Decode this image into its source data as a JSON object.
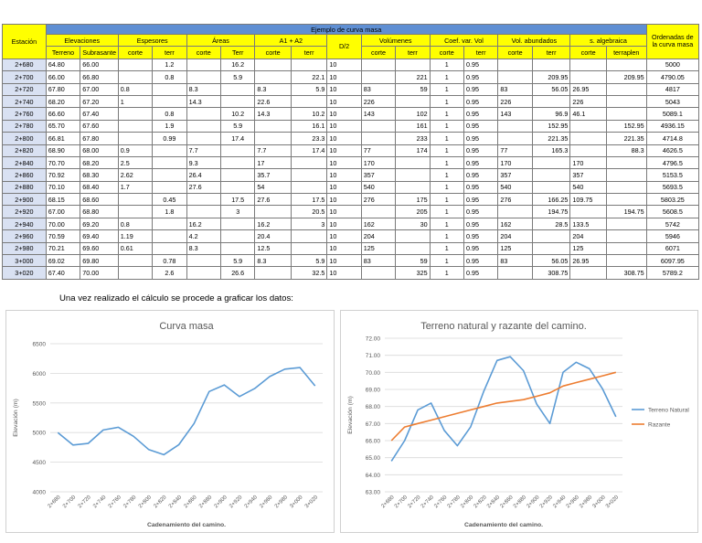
{
  "table": {
    "title": "Ejemplo de curva masa",
    "station_header": "Estación",
    "groups": [
      "Elevaciones",
      "Espesores",
      "Áreas",
      "A1 + A2",
      "D/2",
      "Volúmenes",
      "Coef. var. Vol",
      "Vol. abundados",
      "s. algebraica",
      "Ordenadas de la curva masa"
    ],
    "subheaders": [
      "Terreno",
      "Subrasante",
      "corte",
      "terr",
      "corte",
      "Terr",
      "corte",
      "terr",
      "corte",
      "terr",
      "corte",
      "terr",
      "corte",
      "terr",
      "corte",
      "terraplen"
    ],
    "rows": [
      [
        "2+680",
        "64.80",
        "66.00",
        "",
        "1.2",
        "",
        "16.2",
        "",
        "",
        "10",
        "",
        "",
        "1",
        "0.95",
        "",
        "",
        "",
        "",
        "5000"
      ],
      [
        "2+700",
        "66.00",
        "66.80",
        "",
        "0.8",
        "",
        "5.9",
        "",
        "22.1",
        "10",
        "",
        "221",
        "1",
        "0.95",
        "",
        "209.95",
        "",
        "209.95",
        "4790.05"
      ],
      [
        "2+720",
        "67.80",
        "67.00",
        "0.8",
        "",
        "8.3",
        "",
        "8.3",
        "5.9",
        "10",
        "83",
        "59",
        "1",
        "0.95",
        "83",
        "56.05",
        "26.95",
        "",
        "4817"
      ],
      [
        "2+740",
        "68.20",
        "67.20",
        "1",
        "",
        "14.3",
        "",
        "22.6",
        "",
        "10",
        "226",
        "",
        "1",
        "0.95",
        "226",
        "",
        "226",
        "",
        "5043"
      ],
      [
        "2+760",
        "66.60",
        "67.40",
        "",
        "0.8",
        "",
        "10.2",
        "14.3",
        "10.2",
        "10",
        "143",
        "102",
        "1",
        "0.95",
        "143",
        "96.9",
        "46.1",
        "",
        "5089.1"
      ],
      [
        "2+780",
        "65.70",
        "67.60",
        "",
        "1.9",
        "",
        "5.9",
        "",
        "16.1",
        "10",
        "",
        "161",
        "1",
        "0.95",
        "",
        "152.95",
        "",
        "152.95",
        "4936.15"
      ],
      [
        "2+800",
        "66.81",
        "67.80",
        "",
        "0.99",
        "",
        "17.4",
        "",
        "23.3",
        "10",
        "",
        "233",
        "1",
        "0.95",
        "",
        "221.35",
        "",
        "221.35",
        "4714.8"
      ],
      [
        "2+820",
        "68.90",
        "68.00",
        "0.9",
        "",
        "7.7",
        "",
        "7.7",
        "17.4",
        "10",
        "77",
        "174",
        "1",
        "0.95",
        "77",
        "165.3",
        "",
        "88.3",
        "4626.5"
      ],
      [
        "2+840",
        "70.70",
        "68.20",
        "2.5",
        "",
        "9.3",
        "",
        "17",
        "",
        "10",
        "170",
        "",
        "1",
        "0.95",
        "170",
        "",
        "170",
        "",
        "4796.5"
      ],
      [
        "2+860",
        "70.92",
        "68.30",
        "2.62",
        "",
        "26.4",
        "",
        "35.7",
        "",
        "10",
        "357",
        "",
        "1",
        "0.95",
        "357",
        "",
        "357",
        "",
        "5153.5"
      ],
      [
        "2+880",
        "70.10",
        "68.40",
        "1.7",
        "",
        "27.6",
        "",
        "54",
        "",
        "10",
        "540",
        "",
        "1",
        "0.95",
        "540",
        "",
        "540",
        "",
        "5693.5"
      ],
      [
        "2+900",
        "68.15",
        "68.60",
        "",
        "0.45",
        "",
        "17.5",
        "27.6",
        "17.5",
        "10",
        "276",
        "175",
        "1",
        "0.95",
        "276",
        "166.25",
        "109.75",
        "",
        "5803.25"
      ],
      [
        "2+920",
        "67.00",
        "68.80",
        "",
        "1.8",
        "",
        "3",
        "",
        "20.5",
        "10",
        "",
        "205",
        "1",
        "0.95",
        "",
        "194.75",
        "",
        "194.75",
        "5608.5"
      ],
      [
        "2+940",
        "70.00",
        "69.20",
        "0.8",
        "",
        "16.2",
        "",
        "16.2",
        "3",
        "10",
        "162",
        "30",
        "1",
        "0.95",
        "162",
        "28.5",
        "133.5",
        "",
        "5742"
      ],
      [
        "2+960",
        "70.59",
        "69.40",
        "1.19",
        "",
        "4.2",
        "",
        "20.4",
        "",
        "10",
        "204",
        "",
        "1",
        "0.95",
        "204",
        "",
        "204",
        "",
        "5946"
      ],
      [
        "2+980",
        "70.21",
        "69.60",
        "0.61",
        "",
        "8.3",
        "",
        "12.5",
        "",
        "10",
        "125",
        "",
        "1",
        "0.95",
        "125",
        "",
        "125",
        "",
        "6071"
      ],
      [
        "3+000",
        "69.02",
        "69.80",
        "",
        "0.78",
        "",
        "5.9",
        "8.3",
        "5.9",
        "10",
        "83",
        "59",
        "1",
        "0.95",
        "83",
        "56.05",
        "26.95",
        "",
        "6097.95"
      ],
      [
        "3+020",
        "67.40",
        "70.00",
        "",
        "2.6",
        "",
        "26.6",
        "",
        "32.5",
        "10",
        "",
        "325",
        "1",
        "0.95",
        "",
        "308.75",
        "",
        "308.75",
        "5789.2"
      ]
    ]
  },
  "intro_text": "Una vez realizado el cálculo se procede a graficar los datos:",
  "chart_data": [
    {
      "type": "line",
      "title": "Curva masa",
      "xlabel": "Cadenamiento del camino.",
      "ylabel": "Elevación (m)",
      "categories": [
        "2+680",
        "2+700",
        "2+720",
        "2+740",
        "2+760",
        "2+780",
        "2+800",
        "2+820",
        "2+840",
        "2+860",
        "2+880",
        "2+900",
        "2+920",
        "2+940",
        "2+960",
        "2+980",
        "3+000",
        "3+020"
      ],
      "ylim": [
        4000,
        6500
      ],
      "yticks": [
        "4000",
        "4500",
        "5000",
        "5500",
        "6000",
        "6500"
      ],
      "grid": true,
      "series": [
        {
          "values": [
            5000,
            4790.05,
            4817,
            5043,
            5089.1,
            4936.15,
            4714.8,
            4626.5,
            4796.5,
            5153.5,
            5693.5,
            5803.25,
            5608.5,
            5742,
            5946,
            6071,
            6097.95,
            5789.2
          ],
          "color": "#5b9bd5"
        }
      ]
    },
    {
      "type": "line",
      "title": "Terreno natural y razante del camino.",
      "xlabel": "Cadenamiento del camino.",
      "ylabel": "Elevación (m)",
      "categories": [
        "2+680",
        "2+700",
        "2+720",
        "2+740",
        "2+760",
        "2+780",
        "2+800",
        "2+820",
        "2+840",
        "2+860",
        "2+880",
        "2+900",
        "2+920",
        "2+940",
        "2+960",
        "2+980",
        "3+000",
        "3+020"
      ],
      "ylim": [
        63,
        72
      ],
      "yticks": [
        "63.00",
        "64.00",
        "65.00",
        "66.00",
        "67.00",
        "68.00",
        "69.00",
        "70.00",
        "71.00",
        "72.00"
      ],
      "grid": true,
      "legend": "right",
      "series": [
        {
          "name": "Terreno Natural",
          "values": [
            64.8,
            66.0,
            67.8,
            68.2,
            66.6,
            65.7,
            66.81,
            68.9,
            70.7,
            70.92,
            70.1,
            68.15,
            67.0,
            70.0,
            70.59,
            70.21,
            69.02,
            67.4
          ],
          "color": "#5b9bd5"
        },
        {
          "name": "Razante",
          "values": [
            66.0,
            66.8,
            67.0,
            67.2,
            67.4,
            67.6,
            67.8,
            68.0,
            68.2,
            68.3,
            68.4,
            68.6,
            68.8,
            69.2,
            69.4,
            69.6,
            69.8,
            70.0
          ],
          "color": "#ed7d31"
        }
      ]
    }
  ]
}
